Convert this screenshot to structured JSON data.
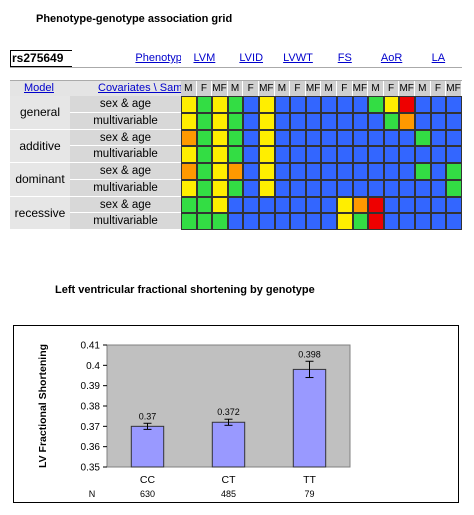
{
  "titles": {
    "grid": "Phenotype-genotype association grid",
    "chart": "Left ventricular fractional shortening by genotype"
  },
  "grid": {
    "snp": "rs275649",
    "phenotype_label": "Phenotype",
    "model_label": "Model",
    "covariates_label": "Covariates \\ Sample",
    "phenotypes": [
      "LVM",
      "LVID",
      "LVWT",
      "FS",
      "AoR",
      "LA"
    ],
    "samples": [
      "M",
      "F",
      "MF"
    ],
    "rows": [
      {
        "model": "general",
        "covariate": "sex & age",
        "colors": [
          "yellow",
          "green",
          "yellow",
          "green",
          "blue",
          "yellow",
          "blue",
          "blue",
          "blue",
          "blue",
          "blue",
          "blue",
          "green",
          "yellow",
          "red",
          "blue",
          "blue",
          "blue"
        ]
      },
      {
        "model": "",
        "covariate": "multivariable",
        "colors": [
          "yellow",
          "green",
          "yellow",
          "green",
          "blue",
          "yellow",
          "blue",
          "blue",
          "blue",
          "blue",
          "blue",
          "blue",
          "blue",
          "green",
          "orange",
          "blue",
          "blue",
          "blue"
        ]
      },
      {
        "model": "additive",
        "covariate": "sex & age",
        "colors": [
          "orange",
          "green",
          "yellow",
          "green",
          "blue",
          "yellow",
          "blue",
          "blue",
          "blue",
          "blue",
          "blue",
          "blue",
          "blue",
          "blue",
          "blue",
          "green",
          "blue",
          "blue"
        ]
      },
      {
        "model": "",
        "covariate": "multivariable",
        "colors": [
          "yellow",
          "green",
          "yellow",
          "green",
          "blue",
          "yellow",
          "blue",
          "blue",
          "blue",
          "blue",
          "blue",
          "blue",
          "blue",
          "blue",
          "blue",
          "blue",
          "blue",
          "blue"
        ]
      },
      {
        "model": "dominant",
        "covariate": "sex & age",
        "colors": [
          "orange",
          "green",
          "yellow",
          "orange",
          "blue",
          "yellow",
          "blue",
          "blue",
          "blue",
          "blue",
          "blue",
          "blue",
          "blue",
          "blue",
          "blue",
          "green",
          "blue",
          "green"
        ]
      },
      {
        "model": "",
        "covariate": "multivariable",
        "colors": [
          "yellow",
          "green",
          "yellow",
          "green",
          "blue",
          "yellow",
          "blue",
          "blue",
          "blue",
          "blue",
          "blue",
          "blue",
          "blue",
          "blue",
          "blue",
          "blue",
          "blue",
          "green"
        ]
      },
      {
        "model": "recessive",
        "covariate": "sex & age",
        "colors": [
          "green",
          "green",
          "yellow",
          "blue",
          "blue",
          "blue",
          "blue",
          "blue",
          "blue",
          "blue",
          "yellow",
          "orange",
          "red",
          "blue",
          "blue",
          "blue",
          "blue",
          "blue"
        ]
      },
      {
        "model": "",
        "covariate": "multivariable",
        "colors": [
          "green",
          "green",
          "green",
          "blue",
          "blue",
          "blue",
          "blue",
          "blue",
          "blue",
          "blue",
          "yellow",
          "green",
          "red",
          "blue",
          "blue",
          "blue",
          "blue",
          "blue"
        ]
      }
    ],
    "palette": {
      "blue": "#3366ff",
      "green": "#33dd44",
      "yellow": "#ffee00",
      "orange": "#ff9900",
      "red": "#ee0000"
    }
  },
  "chart_data": {
    "type": "bar",
    "categories": [
      "CC",
      "CT",
      "TT"
    ],
    "values": [
      0.37,
      0.372,
      0.398
    ],
    "value_labels": [
      "0.37",
      "0.372",
      "0.398"
    ],
    "errors": [
      0.0015,
      0.0015,
      0.004
    ],
    "n_label": "N",
    "n_values": [
      "630",
      "485",
      "79"
    ],
    "ylabel": "LV Fractional Shortening",
    "xlabel": "",
    "ylim": [
      0.35,
      0.41
    ],
    "yticks": [
      "0.35",
      "0.36",
      "0.37",
      "0.38",
      "0.39",
      "0.4",
      "0.41"
    ],
    "bar_color": "#9999ff",
    "plot_bg": "#c0c0c0"
  }
}
